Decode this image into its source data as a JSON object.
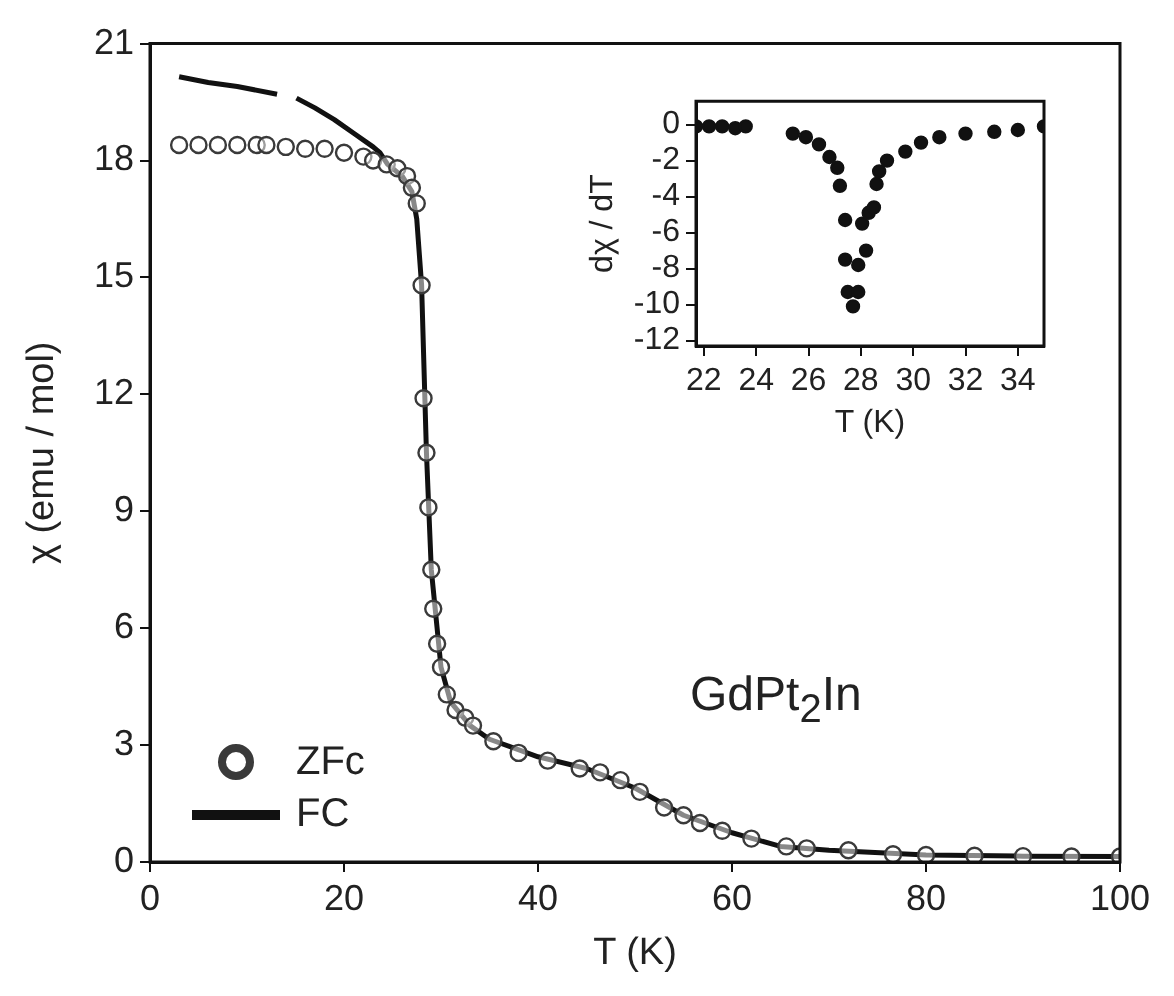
{
  "chart_data": [
    {
      "type": "line",
      "xlabel": "T (K)",
      "ylabel": "χ (emu / mol)",
      "xlim": [
        0,
        100
      ],
      "ylim": [
        0,
        21
      ],
      "xticks": [
        0,
        20,
        40,
        60,
        80,
        100
      ],
      "yticks": [
        0,
        3,
        6,
        9,
        12,
        15,
        18,
        21
      ],
      "grid": false,
      "legend": "bottom left",
      "annotations": [
        "GdPt$_{2}$In"
      ],
      "series": [
        {
          "name": "ZFc",
          "type": "scatter",
          "marker": "circle",
          "color": "#3a3a3a",
          "x": [
            3,
            5,
            7,
            9,
            11,
            12,
            14,
            16,
            18,
            20,
            22,
            23,
            24.4,
            25.5,
            26.5,
            27,
            27.5,
            28,
            28.2,
            28.5,
            28.7,
            29,
            29.2,
            29.6,
            30,
            30.6,
            31.5,
            32.5,
            33.3,
            35.4,
            38,
            41,
            44.3,
            46.4,
            48.5,
            50.5,
            53,
            55,
            56.7,
            59,
            62,
            65.6,
            67.7,
            72,
            76.6,
            80,
            85,
            90,
            95,
            100
          ],
          "values": [
            18.4,
            18.4,
            18.4,
            18.4,
            18.4,
            18.4,
            18.35,
            18.3,
            18.3,
            18.2,
            18.1,
            18.0,
            17.9,
            17.8,
            17.6,
            17.3,
            16.9,
            14.8,
            11.9,
            10.5,
            9.1,
            7.5,
            6.5,
            5.6,
            5.0,
            4.3,
            3.9,
            3.7,
            3.5,
            3.1,
            2.8,
            2.6,
            2.4,
            2.3,
            2.1,
            1.8,
            1.4,
            1.2,
            1.0,
            0.8,
            0.6,
            0.4,
            0.35,
            0.3,
            0.2,
            0.18,
            0.16,
            0.15,
            0.14,
            0.14
          ]
        },
        {
          "name": "FC",
          "type": "line",
          "marker": "none",
          "color": "#111111",
          "x": [
            3,
            6,
            9,
            13.1,
            14.1,
            15.1,
            17,
            19,
            21,
            23,
            23.7,
            24.5,
            26,
            27,
            27.5,
            28,
            28.5,
            29,
            30,
            31,
            33,
            35,
            40,
            45,
            50,
            55,
            60,
            65,
            70,
            80,
            90,
            100
          ],
          "values": [
            20.15,
            20.0,
            19.9,
            19.7,
            null,
            19.6,
            19.35,
            19.05,
            18.7,
            18.35,
            18.2,
            17.9,
            17.6,
            17.2,
            16.5,
            14.8,
            10.5,
            7.5,
            5.0,
            4.1,
            3.5,
            3.15,
            2.7,
            2.4,
            1.9,
            1.2,
            0.75,
            0.4,
            0.3,
            0.18,
            0.15,
            0.14
          ]
        }
      ]
    },
    {
      "type": "scatter",
      "xlabel": "T (K)",
      "ylabel": "dχ / dT",
      "xlim": [
        21.7,
        35
      ],
      "ylim": [
        -12.3,
        1.3
      ],
      "xticks": [
        22,
        24,
        26,
        28,
        30,
        32,
        34
      ],
      "yticks": [
        0,
        -2,
        -4,
        -6,
        -8,
        -10,
        -12
      ],
      "grid": false,
      "marker": "circle",
      "series": [
        {
          "color": "#111111",
          "x": [
            21.7,
            22.2,
            22.7,
            23.2,
            23.6,
            25.4,
            25.9,
            26.4,
            26.8,
            27.1,
            27.2,
            27.4,
            27.4,
            27.5,
            27.7,
            27.9,
            27.9,
            28.05,
            28.2,
            28.3,
            28.5,
            28.6,
            28.7,
            29.0,
            29.7,
            30.3,
            31.0,
            32.0,
            33.1,
            34.0,
            35.0
          ],
          "values": [
            -0.1,
            -0.1,
            -0.1,
            -0.2,
            -0.1,
            -0.5,
            -0.7,
            -1.1,
            -1.8,
            -2.4,
            -3.4,
            -5.3,
            -7.5,
            -9.3,
            -10.1,
            -9.3,
            -7.8,
            -5.5,
            -7.0,
            -4.9,
            -4.6,
            -3.3,
            -2.6,
            -2.0,
            -1.5,
            -1.0,
            -0.7,
            -0.5,
            -0.4,
            -0.3,
            -0.1
          ]
        }
      ]
    }
  ]
}
